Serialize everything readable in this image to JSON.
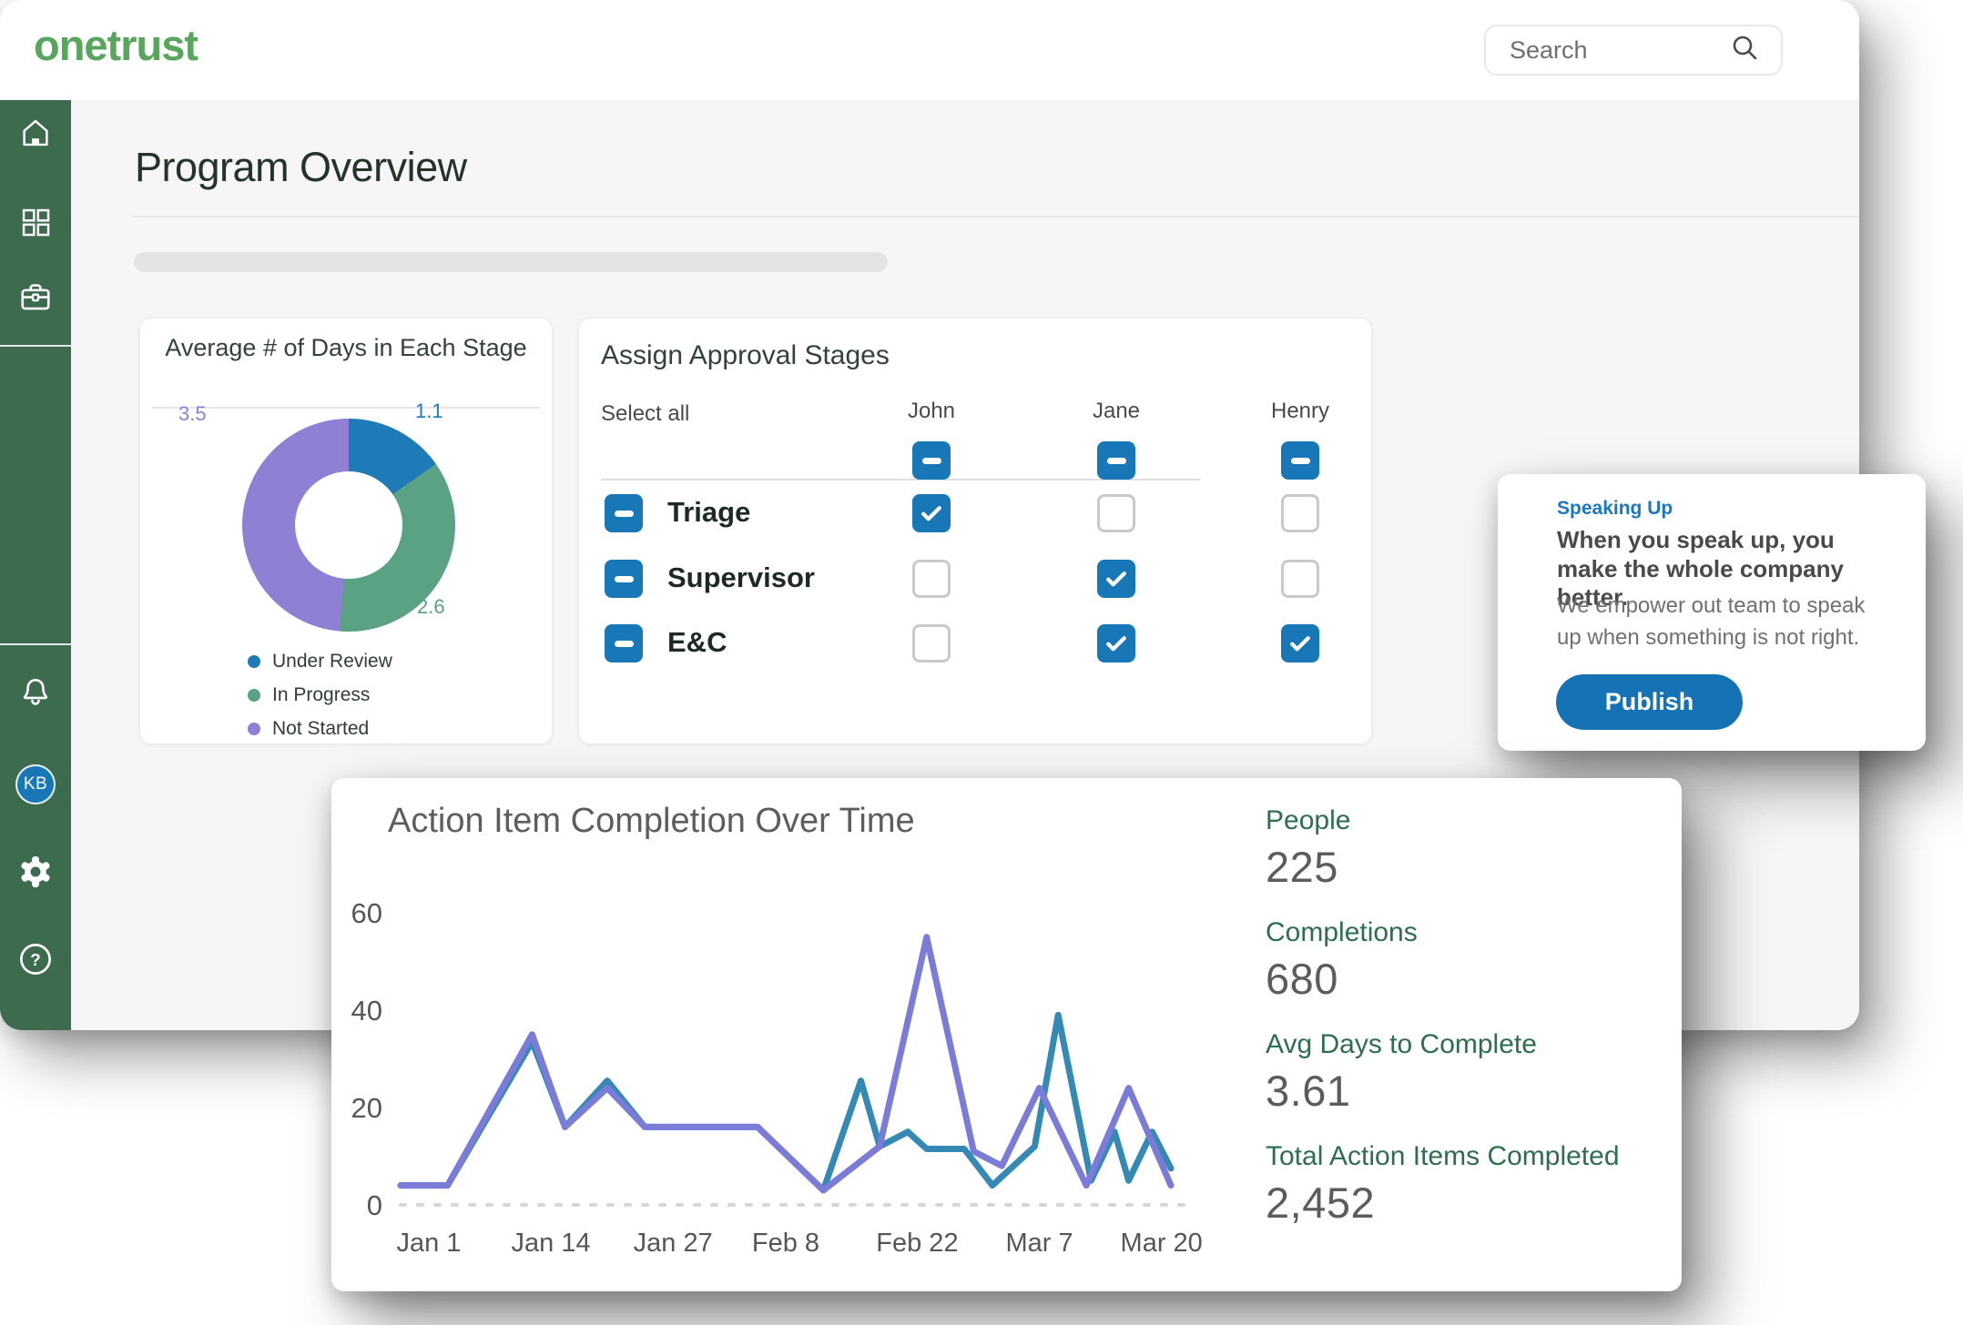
{
  "app": {
    "logo": "onetrust",
    "search_placeholder": "Search"
  },
  "page": {
    "title": "Program Overview"
  },
  "sidebar": {
    "background": "#3d6b4d",
    "avatar_initials": "KB",
    "icons": [
      "home",
      "grid",
      "briefcase",
      "bell",
      "avatar",
      "gear",
      "help"
    ]
  },
  "approval_card": {
    "title": "Assign Approval Stages",
    "select_all_label": "Select all",
    "columns": [
      "John",
      "Jane",
      "Henry"
    ],
    "header_states": [
      "minus",
      "minus",
      "minus"
    ],
    "rows": [
      {
        "label": "Triage",
        "row_state": "minus",
        "cells": [
          "checked",
          "empty",
          "empty"
        ]
      },
      {
        "label": "Supervisor",
        "row_state": "minus",
        "cells": [
          "empty",
          "checked",
          "empty"
        ]
      },
      {
        "label": "E&C",
        "row_state": "minus",
        "cells": [
          "empty",
          "checked",
          "checked"
        ]
      }
    ],
    "checkbox_color": "#1878b7"
  },
  "speaking_card": {
    "eyebrow": "Speaking Up",
    "heading": "When you speak up, you make the whole company better.",
    "body": "We empower out team to speak up when something is not right.",
    "button_label": "Publish",
    "accent": "#1b77c0",
    "button_color": "#1572b4"
  },
  "stats": [
    {
      "label": "People",
      "value": "225"
    },
    {
      "label": "Completions",
      "value": "680"
    },
    {
      "label": "Avg Days to Complete",
      "value": "3.61"
    },
    {
      "label": "Total Action Items Completed",
      "value": "2,452"
    }
  ],
  "chart_data": [
    {
      "type": "pie",
      "donut": true,
      "title": "Average # of Days in Each Stage",
      "categories": [
        "Under Review",
        "In Progress",
        "Not Started"
      ],
      "values": [
        1.1,
        2.6,
        3.5
      ],
      "value_labels": [
        "1.1",
        "2.6",
        "3.5"
      ],
      "colors": [
        "#1f7ab8",
        "#5ba183",
        "#8f80d6"
      ],
      "start_angle_deg": 0,
      "legend_position": "bottom"
    },
    {
      "type": "line",
      "title": "Action Item Completion Over Time",
      "xlabel": "",
      "ylabel": "",
      "xlim": [
        -3,
        79
      ],
      "ylim": [
        0,
        62
      ],
      "y_ticks": [
        0,
        20,
        40,
        60
      ],
      "x_tick_days": [
        0,
        13,
        26,
        38,
        52,
        65,
        78
      ],
      "x_tick_labels": [
        "Jan 1",
        "Jan 14",
        "Jan 27",
        "Feb 8",
        "Feb 22",
        "Mar 7",
        "Mar 20"
      ],
      "grid": "dashed zero baseline only",
      "legend_position": "none",
      "series": [
        {
          "name": "teal-series",
          "color": "#3489b5",
          "points": [
            [
              -3,
              4
            ],
            [
              2,
              4
            ],
            [
              11,
              33.5
            ],
            [
              14.5,
              16
            ],
            [
              19,
              25.5
            ],
            [
              23,
              16
            ],
            [
              35,
              16
            ],
            [
              42,
              3
            ],
            [
              46,
              25.5
            ],
            [
              48,
              12
            ],
            [
              51,
              15
            ],
            [
              53,
              11.5
            ],
            [
              57,
              11.5
            ],
            [
              60,
              4
            ],
            [
              64.5,
              12
            ],
            [
              67,
              39
            ],
            [
              70.5,
              5
            ],
            [
              73,
              15
            ],
            [
              74.5,
              5
            ],
            [
              77,
              15
            ],
            [
              79,
              7.5
            ]
          ]
        },
        {
          "name": "purple-series",
          "color": "#7b7bd8",
          "points": [
            [
              -3,
              4
            ],
            [
              2,
              4
            ],
            [
              11,
              35
            ],
            [
              14.5,
              16
            ],
            [
              19,
              24
            ],
            [
              23,
              16
            ],
            [
              35,
              16
            ],
            [
              42,
              3
            ],
            [
              48,
              12
            ],
            [
              53,
              55
            ],
            [
              58,
              11
            ],
            [
              61,
              8
            ],
            [
              65,
              24
            ],
            [
              70,
              4
            ],
            [
              74.5,
              24
            ],
            [
              79,
              4
            ]
          ]
        }
      ]
    }
  ]
}
